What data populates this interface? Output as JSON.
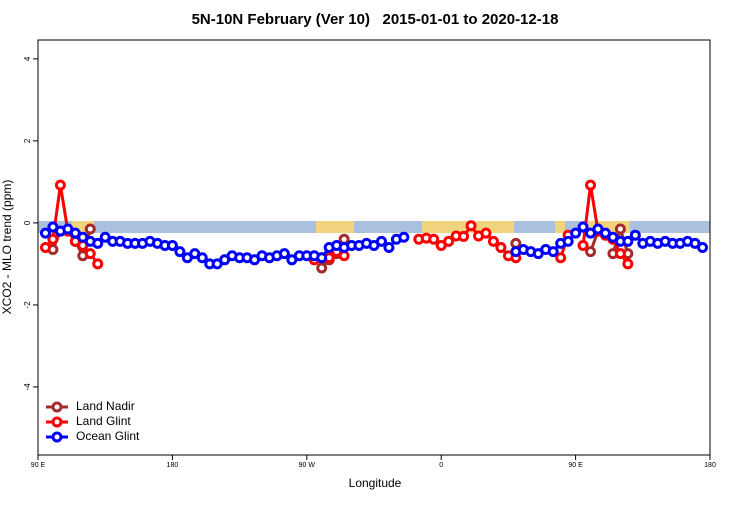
{
  "chart_data": {
    "type": "line",
    "title": "5N-10N February (Ver 10)   2015-01-01 to 2020-12-18",
    "x_label": "Longitude",
    "y_label": "XCO2 - MLO trend (ppm)",
    "x": [
      95,
      100,
      105,
      110,
      115,
      120,
      125,
      130,
      135,
      140,
      145,
      150,
      155,
      160,
      165,
      170,
      175,
      180,
      185,
      190,
      195,
      200,
      205,
      210,
      215,
      220,
      225,
      230,
      235,
      240,
      245,
      250,
      255,
      260,
      265,
      270,
      275,
      280,
      285,
      290,
      295,
      300,
      305,
      310,
      315,
      320,
      325,
      330,
      335,
      340,
      345,
      350,
      355,
      360,
      365,
      370,
      375,
      380,
      385,
      390,
      395,
      400,
      405,
      410,
      415,
      420,
      425,
      430,
      435,
      440,
      445,
      450,
      455,
      460,
      465,
      470,
      475,
      480,
      485,
      490,
      495,
      500,
      505,
      510,
      515,
      520,
      525,
      530,
      535
    ],
    "series": [
      {
        "name": "Land Nadir",
        "color": "#a52a2a",
        "values": [
          null,
          -0.65,
          -0.2,
          null,
          -0.45,
          -0.8,
          -0.15,
          null,
          null,
          null,
          null,
          null,
          null,
          null,
          null,
          null,
          null,
          null,
          null,
          null,
          null,
          null,
          null,
          null,
          null,
          null,
          null,
          null,
          null,
          null,
          null,
          null,
          null,
          null,
          null,
          null,
          null,
          -1.1,
          -0.9,
          -0.75,
          -0.4,
          null,
          null,
          null,
          null,
          null,
          null,
          null,
          null,
          null,
          null,
          null,
          null,
          null,
          null,
          null,
          null,
          null,
          null,
          null,
          null,
          null,
          null,
          -0.5,
          null,
          null,
          null,
          null,
          null,
          null,
          null,
          null,
          null,
          -0.7,
          -0.2,
          null,
          -0.75,
          -0.15,
          -0.75,
          null,
          null,
          null,
          null,
          null,
          null,
          null,
          null,
          null,
          null
        ]
      },
      {
        "name": "Land Glint",
        "color": "#ff0000",
        "values": [
          -0.6,
          -0.4,
          0.92,
          -0.2,
          -0.45,
          -0.55,
          -0.75,
          -1.0,
          null,
          null,
          null,
          null,
          null,
          null,
          null,
          null,
          null,
          null,
          null,
          null,
          null,
          null,
          null,
          null,
          null,
          null,
          null,
          null,
          null,
          null,
          null,
          null,
          null,
          null,
          null,
          null,
          -0.9,
          -0.85,
          -0.85,
          -0.7,
          -0.8,
          null,
          null,
          null,
          null,
          null,
          null,
          null,
          null,
          null,
          -0.4,
          -0.37,
          -0.4,
          -0.55,
          -0.45,
          -0.32,
          -0.33,
          -0.07,
          -0.32,
          -0.25,
          -0.45,
          -0.6,
          -0.8,
          -0.85,
          null,
          null,
          null,
          null,
          null,
          -0.85,
          -0.3,
          null,
          -0.55,
          0.92,
          -0.2,
          -0.3,
          -0.4,
          -0.75,
          -1.0,
          null,
          null,
          null,
          null,
          null,
          null,
          null,
          null,
          null,
          null
        ]
      },
      {
        "name": "Ocean Glint",
        "color": "#0000ff",
        "values": [
          -0.25,
          -0.1,
          -0.2,
          -0.15,
          -0.25,
          -0.35,
          -0.45,
          -0.5,
          -0.35,
          -0.45,
          -0.45,
          -0.5,
          -0.5,
          -0.5,
          -0.45,
          -0.5,
          -0.55,
          -0.55,
          -0.7,
          -0.85,
          -0.75,
          -0.85,
          -1.0,
          -1.0,
          -0.9,
          -0.8,
          -0.85,
          -0.85,
          -0.9,
          -0.8,
          -0.85,
          -0.8,
          -0.75,
          -0.9,
          -0.8,
          -0.8,
          -0.8,
          -0.85,
          -0.6,
          -0.55,
          -0.6,
          -0.55,
          -0.55,
          -0.5,
          -0.55,
          -0.45,
          -0.6,
          -0.4,
          -0.35,
          null,
          null,
          null,
          null,
          null,
          null,
          null,
          null,
          null,
          null,
          null,
          null,
          null,
          null,
          -0.7,
          -0.65,
          -0.7,
          -0.75,
          -0.65,
          -0.7,
          -0.5,
          -0.45,
          -0.25,
          -0.1,
          -0.25,
          -0.15,
          -0.25,
          -0.35,
          -0.45,
          -0.45,
          -0.3,
          -0.5,
          -0.45,
          -0.5,
          -0.45,
          -0.5,
          -0.5,
          -0.45,
          -0.5,
          -0.6
        ]
      }
    ],
    "xlim": [
      90,
      540
    ],
    "xticks": [
      {
        "value": 90,
        "label": "90 E"
      },
      180,
      {
        "value": 270,
        "label": "90 W"
      },
      {
        "value": 360,
        "label": "0"
      },
      {
        "value": 450,
        "label": "90 E"
      },
      {
        "value": 540,
        "label": "180"
      }
    ],
    "ylim": [
      -5.66,
      4.46
    ],
    "yticks": [
      -4,
      -2,
      0,
      2,
      4
    ],
    "legend": "bottomleft",
    "grid": false
  }
}
